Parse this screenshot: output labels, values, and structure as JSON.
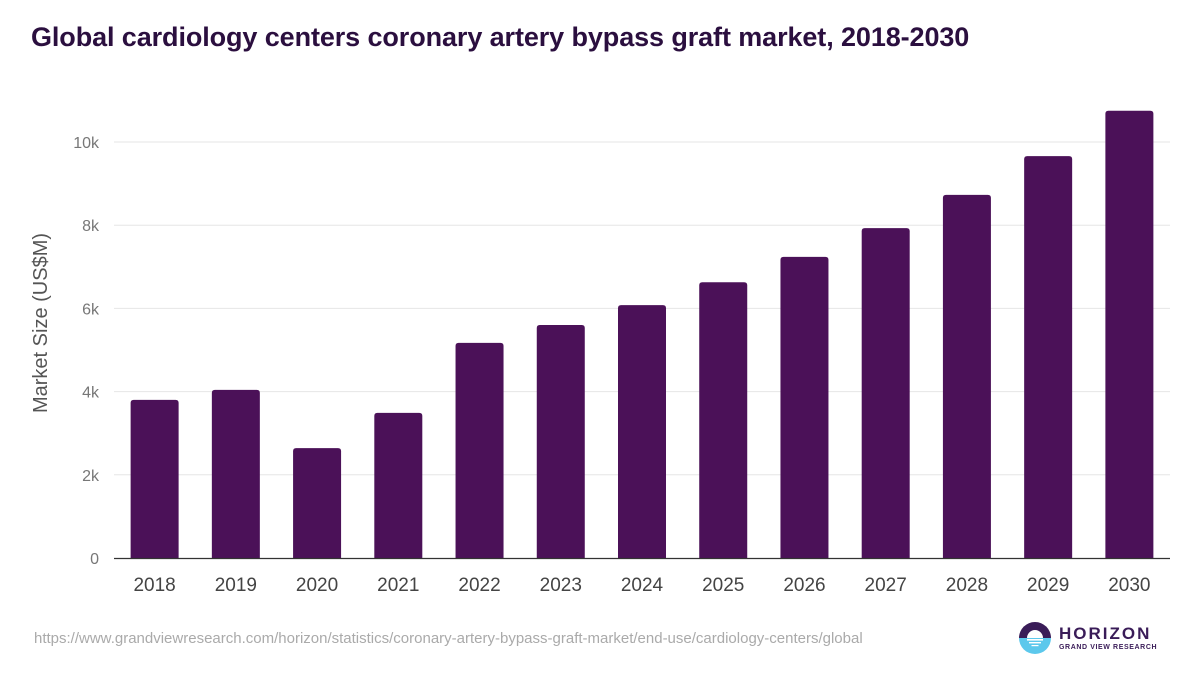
{
  "chart_data": {
    "type": "bar",
    "title": "Global cardiology centers coronary artery bypass graft market, 2018-2030",
    "xlabel": "",
    "ylabel": "Market Size (US$M)",
    "categories": [
      "2018",
      "2019",
      "2020",
      "2021",
      "2022",
      "2023",
      "2024",
      "2025",
      "2026",
      "2027",
      "2028",
      "2029",
      "2030"
    ],
    "values": [
      3800,
      4040,
      2640,
      3490,
      5170,
      5600,
      6080,
      6630,
      7240,
      7930,
      8730,
      9660,
      10750
    ],
    "ylim": [
      0,
      11000
    ],
    "yticks": [
      0,
      2000,
      4000,
      6000,
      8000,
      10000
    ],
    "ytick_labels": [
      "0",
      "2k",
      "4k",
      "6k",
      "8k",
      "10k"
    ],
    "grid": true,
    "legend": "none",
    "bar_color": "#4b1158"
  },
  "footer": {
    "source_url": "https://www.grandviewresearch.com/horizon/statistics/coronary-artery-bypass-graft-market/end-use/cardiology-centers/global",
    "logo_main": "HORIZON",
    "logo_sub": "GRAND VIEW RESEARCH"
  },
  "icons": {
    "logo": "horizon-sun-logo-icon"
  }
}
